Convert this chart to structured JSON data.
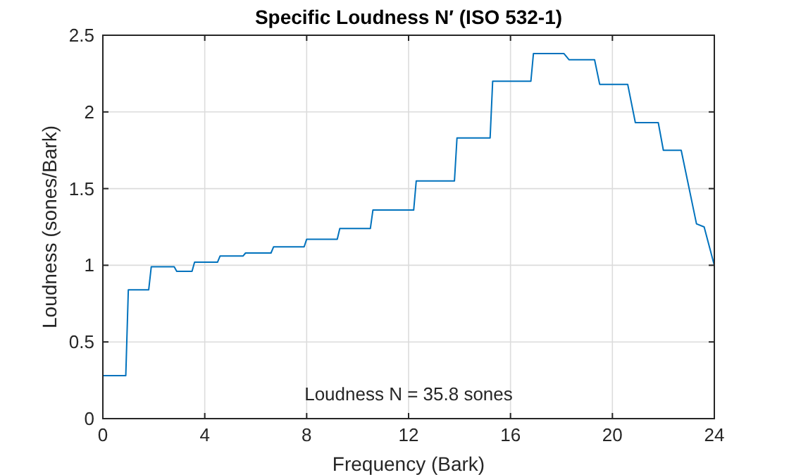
{
  "chart_data": {
    "type": "line",
    "title": "Specific Loudness N′  (ISO 532-1)",
    "xlabel": "Frequency (Bark)",
    "ylabel": "Loudness (sones/Bark)",
    "annotations": [
      "Loudness N = 35.8 sones"
    ],
    "series": [
      {
        "color": "#0072bd",
        "x": [
          0,
          0.9,
          1.0,
          1.8,
          1.9,
          2.8,
          2.9,
          3.5,
          3.6,
          4.5,
          4.6,
          5.5,
          5.6,
          6.6,
          6.7,
          7.9,
          8.0,
          9.2,
          9.3,
          10.5,
          10.6,
          12.2,
          12.3,
          13.8,
          13.9,
          15.2,
          15.3,
          16.8,
          16.9,
          18.1,
          18.3,
          19.3,
          19.5,
          20.6,
          20.9,
          21.8,
          22.0,
          22.7,
          23.3,
          23.6,
          24
        ],
        "values": [
          0.28,
          0.28,
          0.84,
          0.84,
          0.99,
          0.99,
          0.96,
          0.96,
          1.02,
          1.02,
          1.06,
          1.06,
          1.08,
          1.08,
          1.12,
          1.12,
          1.17,
          1.17,
          1.24,
          1.24,
          1.36,
          1.36,
          1.55,
          1.55,
          1.83,
          1.83,
          2.2,
          2.2,
          2.38,
          2.38,
          2.34,
          2.34,
          2.18,
          2.18,
          1.93,
          1.93,
          1.75,
          1.75,
          1.27,
          1.25,
          1.0
        ]
      }
    ],
    "xlim": [
      0,
      24
    ],
    "xticks": [
      0,
      4,
      8,
      12,
      16,
      20,
      24
    ],
    "ylim": [
      0,
      2.5
    ],
    "yticks": [
      0,
      0.5,
      1,
      1.5,
      2,
      2.5
    ],
    "grid": true
  }
}
